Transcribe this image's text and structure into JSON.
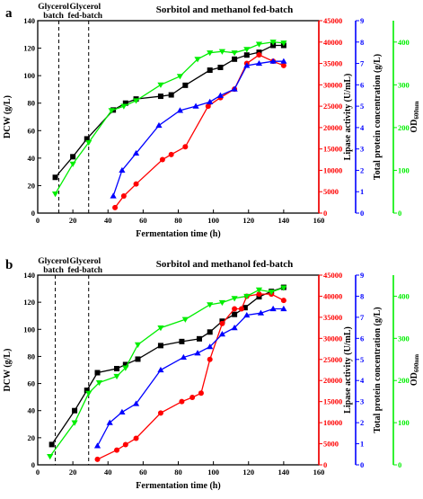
{
  "colors": {
    "dcw": "#000000",
    "lipase": "#ff0000",
    "protein": "#0000ff",
    "od": "#00ee00",
    "axes": "#000000"
  },
  "chart_data": [
    {
      "type": "line",
      "panel_label": "a",
      "title": "Sorbitol and methanol fed-batch",
      "phase_labels": [
        {
          "text": [
            "Glycerol",
            "batch"
          ],
          "x": 9
        },
        {
          "text": [
            "Glycerol",
            "fed-batch"
          ],
          "x": 27
        }
      ],
      "phase_lines_x": [
        12,
        29
      ],
      "xlabel": "Fermentation time (h)",
      "xlim": [
        0,
        160
      ],
      "xticks": [
        0,
        20,
        40,
        60,
        80,
        100,
        120,
        140,
        160
      ],
      "axes": [
        {
          "key": "dcw",
          "label": "DCW (g/L)",
          "side": "left",
          "lim": [
            0,
            140
          ],
          "ticks": [
            0,
            20,
            40,
            60,
            80,
            100,
            120,
            140
          ]
        },
        {
          "key": "lipase",
          "label": "Lipase activity (U/mL)",
          "side": "right",
          "lim": [
            0,
            45000
          ],
          "ticks": [
            0,
            5000,
            10000,
            15000,
            20000,
            25000,
            30000,
            35000,
            40000,
            45000
          ]
        },
        {
          "key": "protein",
          "label": "Total protein concentration (g/L)",
          "side": "right",
          "lim": [
            0,
            9
          ],
          "ticks": [
            0,
            1,
            2,
            3,
            4,
            5,
            6,
            7,
            8,
            9
          ]
        },
        {
          "key": "od",
          "label": "OD600nm",
          "label_main": "OD",
          "label_sub": "600nm",
          "side": "right",
          "lim": [
            0,
            450
          ],
          "ticks": [
            0,
            100,
            200,
            300,
            400
          ]
        }
      ],
      "series": [
        {
          "key": "dcw",
          "axis": "dcw",
          "marker": "square",
          "x": [
            10,
            20,
            28,
            43,
            50,
            56,
            70,
            76,
            84,
            98,
            104,
            112,
            119,
            126,
            134,
            140
          ],
          "y": [
            26,
            41,
            54,
            75,
            80,
            83,
            85,
            86,
            93,
            104,
            106,
            112,
            115,
            117,
            122,
            122
          ]
        },
        {
          "key": "lipase",
          "axis": "lipase",
          "marker": "circle",
          "x": [
            44,
            49,
            56,
            71,
            76,
            84,
            97,
            104,
            112,
            119,
            126,
            134,
            140
          ],
          "y": [
            1300,
            4000,
            6800,
            12500,
            13700,
            15500,
            25000,
            27000,
            29000,
            35000,
            37000,
            35500,
            34500
          ]
        },
        {
          "key": "protein",
          "axis": "protein",
          "marker": "triangle-up",
          "x": [
            43,
            48,
            56,
            69,
            81,
            90,
            98,
            104,
            112,
            119,
            126,
            134,
            140
          ],
          "y": [
            0.8,
            2.0,
            2.8,
            4.1,
            4.8,
            5.0,
            5.2,
            5.5,
            5.8,
            6.9,
            7.0,
            7.1,
            7.1
          ]
        },
        {
          "key": "od",
          "axis": "od",
          "marker": "triangle-down",
          "x": [
            10,
            20,
            29,
            42,
            49,
            56,
            70,
            81,
            91,
            98,
            105,
            112,
            119,
            126,
            134,
            140
          ],
          "y": [
            45,
            115,
            165,
            240,
            250,
            263,
            300,
            320,
            360,
            375,
            378,
            375,
            383,
            395,
            400,
            398
          ]
        }
      ]
    },
    {
      "type": "line",
      "panel_label": "b",
      "title": "Sorbitol and methanol fed-batch",
      "phase_labels": [
        {
          "text": [
            "Glycerol",
            "batch"
          ],
          "x": 9
        },
        {
          "text": [
            "Glycerol",
            "fed-batch"
          ],
          "x": 27
        }
      ],
      "phase_lines_x": [
        10,
        29
      ],
      "xlabel": "Fermentation time (h)",
      "xlim": [
        0,
        160
      ],
      "xticks": [
        0,
        20,
        40,
        60,
        80,
        100,
        120,
        140,
        160
      ],
      "axes": [
        {
          "key": "dcw",
          "label": "DCW (g/L)",
          "side": "left",
          "lim": [
            0,
            140
          ],
          "ticks": [
            0,
            20,
            40,
            60,
            80,
            100,
            120,
            140
          ]
        },
        {
          "key": "lipase",
          "label": "Lipase activity (U/mL)",
          "side": "right",
          "lim": [
            0,
            45000
          ],
          "ticks": [
            0,
            5000,
            10000,
            15000,
            20000,
            25000,
            30000,
            35000,
            40000,
            45000
          ]
        },
        {
          "key": "protein",
          "label": "Total protein concentration (g/L)",
          "side": "right",
          "lim": [
            0,
            9
          ],
          "ticks": [
            0,
            1,
            2,
            3,
            4,
            5,
            6,
            7,
            8,
            9
          ]
        },
        {
          "key": "od",
          "label": "OD600nm",
          "label_main": "OD",
          "label_sub": "600nm",
          "side": "right",
          "lim": [
            0,
            450
          ],
          "ticks": [
            0,
            100,
            200,
            300,
            400
          ]
        }
      ],
      "series": [
        {
          "key": "dcw",
          "axis": "dcw",
          "marker": "square",
          "x": [
            8,
            21,
            28,
            34,
            45,
            50,
            57,
            70,
            82,
            92,
            98,
            105,
            112,
            118,
            126,
            133,
            140
          ],
          "y": [
            15,
            40,
            55,
            68,
            71,
            74,
            78,
            88,
            91,
            93,
            98,
            106,
            111,
            116,
            124,
            128,
            131
          ]
        },
        {
          "key": "lipase",
          "axis": "lipase",
          "marker": "circle",
          "x": [
            34,
            45,
            50,
            56,
            70,
            82,
            88,
            93,
            98,
            105,
            112,
            116,
            119,
            126,
            133,
            140
          ],
          "y": [
            1300,
            3500,
            4800,
            6300,
            12300,
            15000,
            16000,
            17000,
            25000,
            33500,
            37000,
            37000,
            40000,
            40500,
            40500,
            39000
          ]
        },
        {
          "key": "protein",
          "axis": "protein",
          "marker": "triangle-up",
          "x": [
            34,
            41,
            48,
            56,
            70,
            83,
            91,
            98,
            105,
            112,
            119,
            127,
            134,
            140
          ],
          "y": [
            0.9,
            2.0,
            2.5,
            2.9,
            4.5,
            5.1,
            5.3,
            5.6,
            6.2,
            6.5,
            7.1,
            7.2,
            7.4,
            7.4
          ]
        },
        {
          "key": "od",
          "axis": "od",
          "marker": "triangle-down",
          "x": [
            7,
            21,
            29,
            35,
            45,
            50,
            57,
            70,
            84,
            98,
            105,
            112,
            119,
            126,
            133,
            140
          ],
          "y": [
            20,
            100,
            170,
            195,
            210,
            230,
            285,
            325,
            345,
            380,
            385,
            395,
            400,
            415,
            410,
            420
          ]
        }
      ]
    }
  ]
}
